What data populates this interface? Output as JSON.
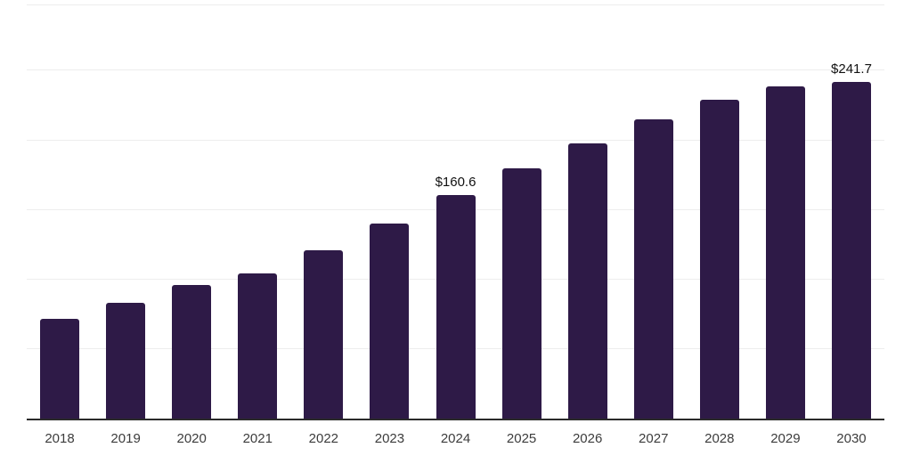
{
  "chart_data": {
    "type": "bar",
    "title": "",
    "xlabel": "",
    "ylabel": "",
    "categories": [
      "2018",
      "2019",
      "2020",
      "2021",
      "2022",
      "2023",
      "2024",
      "2025",
      "2026",
      "2027",
      "2028",
      "2029",
      "2030"
    ],
    "values": [
      72.0,
      83.1,
      95.9,
      104.6,
      120.8,
      140.2,
      160.6,
      179.6,
      198.1,
      215.1,
      229.1,
      238.5,
      241.7
    ],
    "value_labels": [
      "",
      "",
      "",
      "",
      "",
      "",
      "$160.6",
      "",
      "",
      "",
      "",
      "",
      "$241.7"
    ],
    "ylim": [
      0,
      297
    ],
    "gridline_interval": 50,
    "grid": true,
    "legend": false,
    "y_axis_ticks_visible": false,
    "colors": {
      "bar": "#2e1a47",
      "gridline": "#ededed",
      "axis_line": "#2b2b2b",
      "tick_label": "#3c3c3c",
      "value_label": "#111111",
      "background": "#ffffff"
    }
  }
}
